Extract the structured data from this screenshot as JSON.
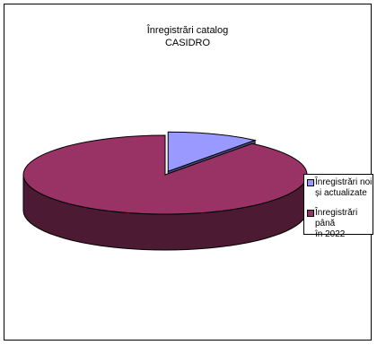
{
  "chart_data": {
    "type": "pie",
    "title_lines": [
      "Înregistrări catalog",
      "CASIDRO"
    ],
    "slices": [
      {
        "label_lines": [
          "Înregistrări noi",
          "și actualizate"
        ],
        "value": 10.5,
        "color": "#9999ff",
        "side_color": "#4d4d80",
        "exploded": true
      },
      {
        "label_lines": [
          "Înregistrări până",
          "în 2022"
        ],
        "value": 89.5,
        "color": "#993366",
        "side_color": "#4d1a33",
        "exploded": false
      }
    ],
    "legend_position": "right",
    "style": "3d-exploded"
  }
}
